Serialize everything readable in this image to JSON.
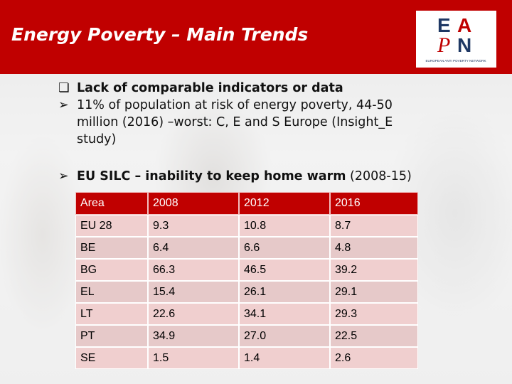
{
  "slide": {
    "title": "Energy Poverty – Main Trends",
    "logo_letters": [
      "E",
      "A",
      "P",
      "N"
    ],
    "logo_caption": "EUROPEAN ANTI POVERTY NETWORK"
  },
  "bullets": [
    {
      "mark": "❏",
      "text": "Lack of comparable indicators or data"
    },
    {
      "mark": "➢",
      "text": "11% of population at risk of energy poverty, 44-50 million (2016) –worst: C, E and S Europe (Insight_E study)"
    },
    {
      "mark": "➢",
      "text_bold": "EU SILC – inability to keep home warm",
      "text_light": " (2008-15)"
    }
  ],
  "table": {
    "headers": [
      "Area",
      "2008",
      "2012",
      "2016"
    ],
    "rows": [
      [
        "EU 28",
        "9.3",
        "10.8",
        "8.7"
      ],
      [
        "BE",
        "6.4",
        "6.6",
        "4.8"
      ],
      [
        "BG",
        "66.3",
        "46.5",
        "39.2"
      ],
      [
        "EL",
        "15.4",
        "26.1",
        "29.1"
      ],
      [
        "LT",
        "22.6",
        "34.1",
        "29.3"
      ],
      [
        "PT",
        "34.9",
        "27.0",
        "22.5"
      ],
      [
        "SE",
        "1.5",
        "1.4",
        "2.6"
      ]
    ]
  },
  "colors": {
    "accent": "#c00000",
    "logo_blue": "#1f3864"
  }
}
